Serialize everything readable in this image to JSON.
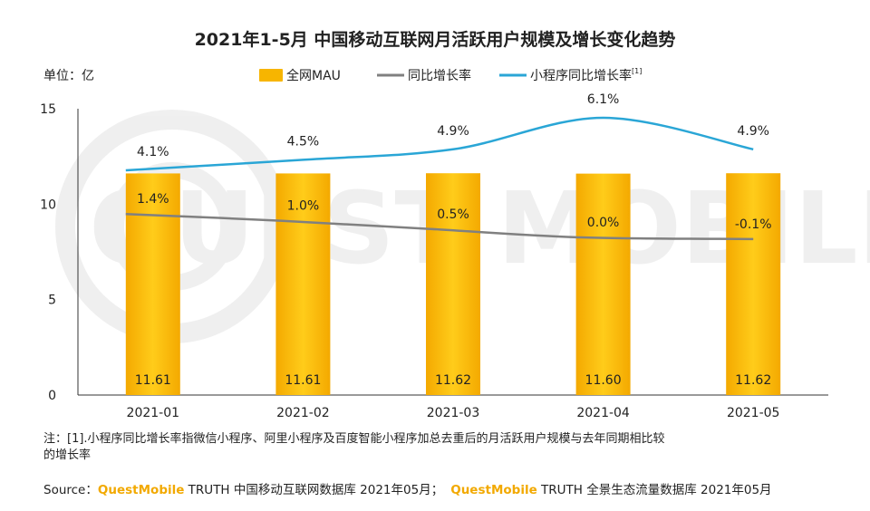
{
  "chart_data": {
    "type": "bar",
    "title": "2021年1-5月 中国移动互联网月活跃用户规模及增长变化趋势",
    "unit_label": "单位：亿",
    "categories": [
      "2021-01",
      "2021-02",
      "2021-03",
      "2021-04",
      "2021-05"
    ],
    "ylim": [
      0,
      15
    ],
    "yticks": [
      "0",
      "5",
      "10",
      "15"
    ],
    "series": [
      {
        "name": "全网MAU",
        "kind": "bar",
        "values": [
          11.61,
          11.61,
          11.62,
          11.6,
          11.62
        ],
        "labels": [
          "11.61",
          "11.61",
          "11.62",
          "11.60",
          "11.62"
        ],
        "color": "#f7b500"
      },
      {
        "name": "同比增长率",
        "kind": "line",
        "values": [
          1.4,
          1.0,
          0.5,
          0.0,
          -0.1
        ],
        "labels": [
          "1.4%",
          "1.0%",
          "0.5%",
          "0.0%",
          "-0.1%"
        ],
        "color": "#808080"
      },
      {
        "name": "小程序同比增长率",
        "legend_sup": "[1]",
        "kind": "line",
        "values": [
          4.1,
          4.5,
          4.9,
          6.1,
          4.9
        ],
        "labels": [
          "4.1%",
          "4.5%",
          "4.9%",
          "6.1%",
          "4.9%"
        ],
        "color": "#2aa6d6"
      }
    ],
    "grid": false,
    "legend_position": "top",
    "watermark": "QUEST MOBILE"
  },
  "footnote": {
    "line1": "注：[1].小程序同比增长率指微信小程序、阿里小程序及百度智能小程序加总去重后的月活跃用户规模与去年同期相比较",
    "line2": "的增长率"
  },
  "source": {
    "prefix": "Source：",
    "brand": "QuestMobile",
    "text1": " TRUTH 中国移动互联网数据库 2021年05月；",
    "text2": " TRUTH 全景生态流量数据库 2021年05月"
  }
}
